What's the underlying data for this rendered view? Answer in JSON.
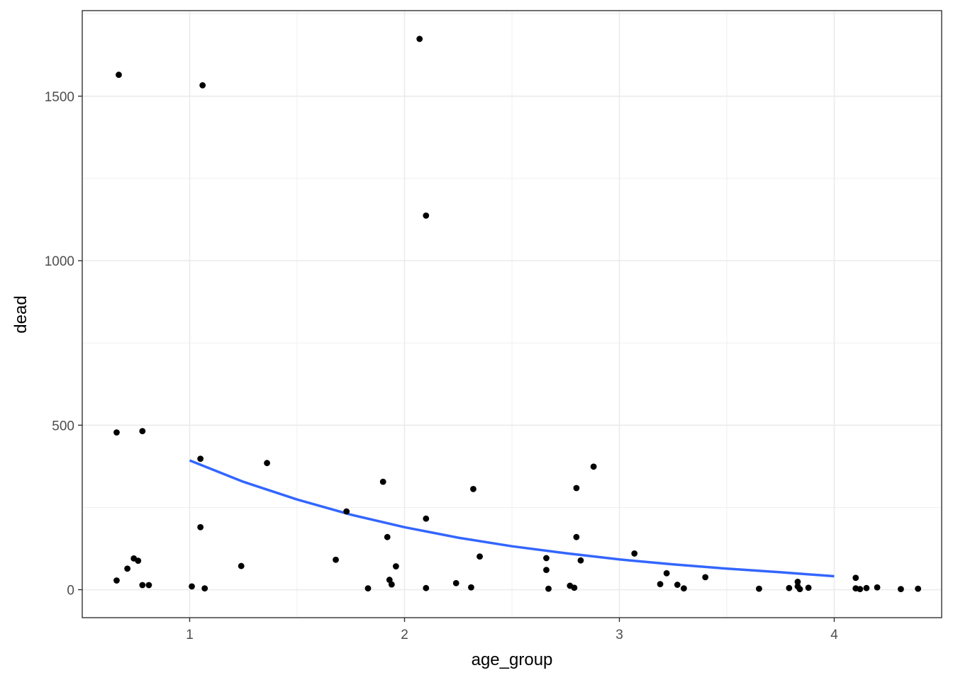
{
  "chart_data": {
    "type": "scatter",
    "title": "",
    "xlabel": "age_group",
    "ylabel": "dead",
    "xlim": [
      0.5,
      4.5
    ],
    "ylim": [
      -85,
      1760
    ],
    "x_ticks": [
      1,
      2,
      3,
      4
    ],
    "y_ticks": [
      0,
      500,
      1000,
      1500
    ],
    "x_tick_labels": [
      "1",
      "2",
      "3",
      "4"
    ],
    "y_tick_labels": [
      "0",
      "500",
      "1000",
      "1500"
    ],
    "grid": true,
    "legend": "none",
    "colors": {
      "points": "#000000",
      "trend": "#3366ff",
      "grid": "#ebebeb",
      "border": "#333333"
    },
    "points": [
      {
        "x": 0.67,
        "y": 1565
      },
      {
        "x": 0.66,
        "y": 478
      },
      {
        "x": 0.78,
        "y": 482
      },
      {
        "x": 0.66,
        "y": 28
      },
      {
        "x": 0.71,
        "y": 64
      },
      {
        "x": 0.74,
        "y": 95
      },
      {
        "x": 0.76,
        "y": 88
      },
      {
        "x": 0.78,
        "y": 14
      },
      {
        "x": 0.81,
        "y": 14
      },
      {
        "x": 1.01,
        "y": 10
      },
      {
        "x": 1.06,
        "y": 1533
      },
      {
        "x": 1.05,
        "y": 398
      },
      {
        "x": 1.05,
        "y": 190
      },
      {
        "x": 1.07,
        "y": 4
      },
      {
        "x": 1.24,
        "y": 72
      },
      {
        "x": 1.36,
        "y": 385
      },
      {
        "x": 1.68,
        "y": 91
      },
      {
        "x": 1.73,
        "y": 238
      },
      {
        "x": 1.83,
        "y": 4
      },
      {
        "x": 1.9,
        "y": 328
      },
      {
        "x": 1.92,
        "y": 160
      },
      {
        "x": 1.93,
        "y": 30
      },
      {
        "x": 1.94,
        "y": 16
      },
      {
        "x": 1.96,
        "y": 71
      },
      {
        "x": 2.07,
        "y": 1674
      },
      {
        "x": 2.1,
        "y": 1137
      },
      {
        "x": 2.1,
        "y": 216
      },
      {
        "x": 2.1,
        "y": 5
      },
      {
        "x": 2.24,
        "y": 20
      },
      {
        "x": 2.31,
        "y": 7
      },
      {
        "x": 2.32,
        "y": 306
      },
      {
        "x": 2.35,
        "y": 101
      },
      {
        "x": 2.66,
        "y": 96
      },
      {
        "x": 2.66,
        "y": 60
      },
      {
        "x": 2.67,
        "y": 3
      },
      {
        "x": 2.77,
        "y": 12
      },
      {
        "x": 2.79,
        "y": 6
      },
      {
        "x": 2.8,
        "y": 309
      },
      {
        "x": 2.8,
        "y": 160
      },
      {
        "x": 2.82,
        "y": 89
      },
      {
        "x": 2.88,
        "y": 374
      },
      {
        "x": 3.07,
        "y": 110
      },
      {
        "x": 3.19,
        "y": 17
      },
      {
        "x": 3.22,
        "y": 50
      },
      {
        "x": 3.27,
        "y": 15
      },
      {
        "x": 3.3,
        "y": 4
      },
      {
        "x": 3.4,
        "y": 38
      },
      {
        "x": 3.65,
        "y": 3
      },
      {
        "x": 3.79,
        "y": 5
      },
      {
        "x": 3.83,
        "y": 24
      },
      {
        "x": 3.83,
        "y": 10
      },
      {
        "x": 3.84,
        "y": 2
      },
      {
        "x": 3.88,
        "y": 6
      },
      {
        "x": 4.1,
        "y": 36
      },
      {
        "x": 4.1,
        "y": 4
      },
      {
        "x": 4.12,
        "y": 2
      },
      {
        "x": 4.15,
        "y": 5
      },
      {
        "x": 4.2,
        "y": 7
      },
      {
        "x": 4.31,
        "y": 2
      },
      {
        "x": 4.39,
        "y": 3
      }
    ],
    "trend_line": {
      "x": [
        1.0,
        1.25,
        1.5,
        1.75,
        2.0,
        2.25,
        2.5,
        2.75,
        3.0,
        3.25,
        3.5,
        3.75,
        4.0
      ],
      "y": [
        393,
        328,
        274,
        228,
        190,
        158,
        132,
        111,
        92,
        77,
        64,
        53,
        41
      ]
    }
  }
}
